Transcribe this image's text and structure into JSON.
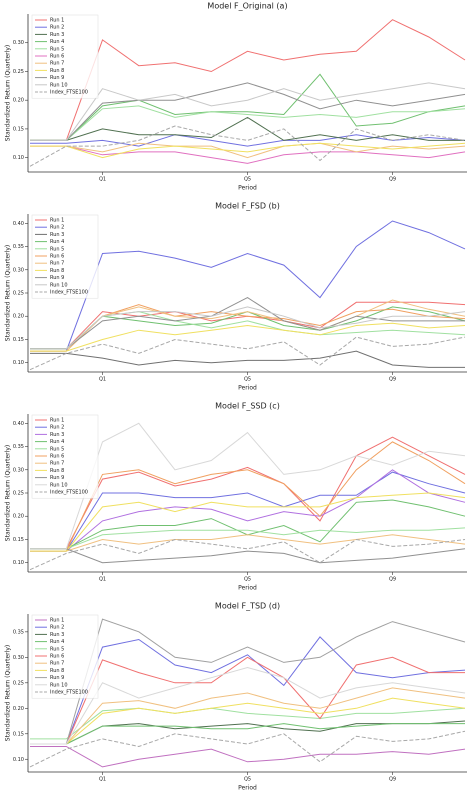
{
  "chart_data": [
    {
      "type": "line",
      "title": "Model F_Original (a)",
      "xlabel": "Period",
      "ylabel": "Standardized Return (Quarterly)",
      "legend": "upper left",
      "categories": [
        null,
        null,
        "Q1",
        null,
        null,
        null,
        "Q5",
        null,
        null,
        null,
        "Q9",
        null,
        null
      ],
      "ylim": [
        0.075,
        0.35
      ],
      "yticks": [
        {
          "value": 0.1,
          "label": "0.10"
        },
        {
          "value": 0.15,
          "label": "0.15"
        },
        {
          "value": 0.2,
          "label": "0.20"
        },
        {
          "value": 0.25,
          "label": "0.25"
        },
        {
          "value": 0.3,
          "label": "0.30"
        }
      ],
      "series": [
        {
          "name": "Run 1",
          "color": "#f07070",
          "values": [
            0.13,
            0.13,
            0.305,
            0.26,
            0.265,
            0.25,
            0.285,
            0.27,
            0.28,
            0.285,
            0.34,
            0.31,
            0.27
          ]
        },
        {
          "name": "Run 2",
          "color": "#7070e0",
          "values": [
            0.125,
            0.125,
            0.13,
            0.12,
            0.14,
            0.13,
            0.12,
            0.13,
            0.13,
            0.14,
            0.13,
            0.135,
            0.13
          ]
        },
        {
          "name": "Run 3",
          "color": "#507050",
          "values": [
            0.13,
            0.13,
            0.15,
            0.14,
            0.14,
            0.135,
            0.17,
            0.13,
            0.14,
            0.13,
            0.14,
            0.13,
            0.13
          ]
        },
        {
          "name": "Run 4",
          "color": "#70c070",
          "values": [
            0.13,
            0.13,
            0.19,
            0.2,
            0.175,
            0.18,
            0.18,
            0.175,
            0.245,
            0.155,
            0.16,
            0.18,
            0.19
          ]
        },
        {
          "name": "Run 5",
          "color": "#a0e0a0",
          "values": [
            0.13,
            0.13,
            0.185,
            0.19,
            0.17,
            0.18,
            0.175,
            0.17,
            0.175,
            0.17,
            0.18,
            0.18,
            0.185
          ]
        },
        {
          "name": "Run 6",
          "color": "#e070c0",
          "values": [
            0.12,
            0.12,
            0.105,
            0.11,
            0.11,
            0.1,
            0.09,
            0.105,
            0.11,
            0.11,
            0.105,
            0.1,
            0.11
          ]
        },
        {
          "name": "Run 7",
          "color": "#f0c080",
          "values": [
            0.12,
            0.12,
            0.11,
            0.125,
            0.12,
            0.12,
            0.1,
            0.12,
            0.125,
            0.11,
            0.12,
            0.115,
            0.12
          ]
        },
        {
          "name": "Run 8",
          "color": "#f0e060",
          "values": [
            0.12,
            0.12,
            0.1,
            0.115,
            0.12,
            0.115,
            0.11,
            0.12,
            0.125,
            0.12,
            0.115,
            0.12,
            0.125
          ]
        },
        {
          "name": "Run 9",
          "color": "#909090",
          "values": [
            0.13,
            0.13,
            0.195,
            0.2,
            0.2,
            0.215,
            0.23,
            0.21,
            0.185,
            0.2,
            0.19,
            0.2,
            0.21
          ]
        },
        {
          "name": "Run 10",
          "color": "#c8c8c8",
          "values": [
            0.13,
            0.13,
            0.22,
            0.2,
            0.21,
            0.19,
            0.2,
            0.22,
            0.2,
            0.21,
            0.22,
            0.23,
            0.22
          ]
        },
        {
          "name": "Index_FTSE100",
          "color": "#a8a8a8",
          "linestyle": "dashed",
          "values": [
            0.085,
            0.12,
            0.12,
            0.13,
            0.155,
            0.14,
            0.13,
            0.15,
            0.095,
            0.15,
            0.13,
            0.14,
            0.13
          ]
        }
      ]
    },
    {
      "type": "line",
      "title": "Model F_FSD (b)",
      "xlabel": "Period",
      "ylabel": "Standardized Return (Quarterly)",
      "legend": "upper left",
      "categories": [
        null,
        null,
        "Q1",
        null,
        null,
        null,
        "Q5",
        null,
        null,
        null,
        "Q9",
        null,
        null
      ],
      "ylim": [
        0.08,
        0.42
      ],
      "yticks": [
        {
          "value": 0.1,
          "label": "0.10"
        },
        {
          "value": 0.15,
          "label": "0.15"
        },
        {
          "value": 0.2,
          "label": "0.20"
        },
        {
          "value": 0.25,
          "label": "0.25"
        },
        {
          "value": 0.3,
          "label": "0.30"
        },
        {
          "value": 0.35,
          "label": "0.35"
        },
        {
          "value": 0.4,
          "label": "0.40"
        }
      ],
      "series": [
        {
          "name": "Run 1",
          "color": "#f07070",
          "values": [
            0.13,
            0.13,
            0.21,
            0.2,
            0.21,
            0.19,
            0.2,
            0.19,
            0.175,
            0.23,
            0.23,
            0.23,
            0.225
          ]
        },
        {
          "name": "Run 2",
          "color": "#7070e0",
          "values": [
            0.125,
            0.125,
            0.335,
            0.34,
            0.325,
            0.305,
            0.335,
            0.31,
            0.24,
            0.35,
            0.405,
            0.38,
            0.345
          ]
        },
        {
          "name": "Run 3",
          "color": "#707070",
          "values": [
            0.12,
            0.12,
            0.11,
            0.095,
            0.105,
            0.1,
            0.105,
            0.105,
            0.11,
            0.125,
            0.095,
            0.09,
            0.09
          ]
        },
        {
          "name": "Run 4",
          "color": "#70c070",
          "values": [
            0.13,
            0.13,
            0.2,
            0.19,
            0.18,
            0.185,
            0.21,
            0.18,
            0.17,
            0.19,
            0.22,
            0.21,
            0.19
          ]
        },
        {
          "name": "Run 5",
          "color": "#a0e0a0",
          "values": [
            0.13,
            0.13,
            0.2,
            0.21,
            0.19,
            0.175,
            0.19,
            0.17,
            0.16,
            0.165,
            0.17,
            0.165,
            0.16
          ]
        },
        {
          "name": "Run 6",
          "color": "#f0a060",
          "values": [
            0.125,
            0.125,
            0.2,
            0.225,
            0.2,
            0.21,
            0.2,
            0.195,
            0.18,
            0.21,
            0.215,
            0.2,
            0.195
          ]
        },
        {
          "name": "Run 7",
          "color": "#f0c080",
          "values": [
            0.125,
            0.125,
            0.2,
            0.22,
            0.2,
            0.195,
            0.21,
            0.19,
            0.17,
            0.2,
            0.235,
            0.215,
            0.2
          ]
        },
        {
          "name": "Run 8",
          "color": "#f0e060",
          "values": [
            0.125,
            0.125,
            0.15,
            0.17,
            0.16,
            0.17,
            0.18,
            0.17,
            0.16,
            0.18,
            0.185,
            0.175,
            0.18
          ]
        },
        {
          "name": "Run 9",
          "color": "#909090",
          "values": [
            0.13,
            0.13,
            0.19,
            0.2,
            0.19,
            0.2,
            0.24,
            0.19,
            0.17,
            0.2,
            0.19,
            0.19,
            0.19
          ]
        },
        {
          "name": "Run 10",
          "color": "#c8c8c8",
          "values": [
            0.13,
            0.13,
            0.2,
            0.21,
            0.21,
            0.2,
            0.22,
            0.2,
            0.175,
            0.185,
            0.2,
            0.2,
            0.21
          ]
        },
        {
          "name": "Index_FTSE100",
          "color": "#a8a8a8",
          "linestyle": "dashed",
          "values": [
            0.085,
            0.12,
            0.14,
            0.12,
            0.15,
            0.14,
            0.13,
            0.145,
            0.095,
            0.155,
            0.135,
            0.14,
            0.155
          ]
        }
      ]
    },
    {
      "type": "line",
      "title": "Model F_SSD (c)",
      "xlabel": "Period",
      "ylabel": "Standardized Return (Quarterly)",
      "legend": "upper left",
      "categories": [
        null,
        null,
        "Q1",
        null,
        null,
        null,
        "Q5",
        null,
        null,
        null,
        "Q9",
        null,
        null
      ],
      "ylim": [
        0.08,
        0.42
      ],
      "yticks": [
        {
          "value": 0.1,
          "label": "0.10"
        },
        {
          "value": 0.15,
          "label": "0.15"
        },
        {
          "value": 0.2,
          "label": "0.20"
        },
        {
          "value": 0.25,
          "label": "0.25"
        },
        {
          "value": 0.3,
          "label": "0.30"
        },
        {
          "value": 0.35,
          "label": "0.35"
        },
        {
          "value": 0.4,
          "label": "0.40"
        }
      ],
      "series": [
        {
          "name": "Run 1",
          "color": "#f07070",
          "values": [
            0.13,
            0.13,
            0.28,
            0.295,
            0.265,
            0.28,
            0.305,
            0.27,
            0.19,
            0.33,
            0.37,
            0.33,
            0.29
          ]
        },
        {
          "name": "Run 2",
          "color": "#7070e0",
          "values": [
            0.125,
            0.125,
            0.25,
            0.25,
            0.24,
            0.24,
            0.25,
            0.22,
            0.245,
            0.245,
            0.295,
            0.27,
            0.25
          ]
        },
        {
          "name": "Run 3",
          "color": "#b070e0",
          "values": [
            0.125,
            0.125,
            0.19,
            0.21,
            0.22,
            0.215,
            0.19,
            0.21,
            0.2,
            0.24,
            0.3,
            0.25,
            0.23
          ]
        },
        {
          "name": "Run 4",
          "color": "#70c070",
          "values": [
            0.13,
            0.13,
            0.17,
            0.18,
            0.18,
            0.195,
            0.16,
            0.18,
            0.145,
            0.23,
            0.235,
            0.22,
            0.2
          ]
        },
        {
          "name": "Run 5",
          "color": "#a0e0a0",
          "values": [
            0.13,
            0.13,
            0.16,
            0.165,
            0.17,
            0.17,
            0.17,
            0.16,
            0.17,
            0.165,
            0.17,
            0.17,
            0.175
          ]
        },
        {
          "name": "Run 6",
          "color": "#f0a060",
          "values": [
            0.125,
            0.125,
            0.29,
            0.3,
            0.27,
            0.29,
            0.3,
            0.27,
            0.2,
            0.3,
            0.36,
            0.32,
            0.27
          ]
        },
        {
          "name": "Run 7",
          "color": "#f0c080",
          "values": [
            0.125,
            0.125,
            0.15,
            0.14,
            0.15,
            0.15,
            0.16,
            0.15,
            0.14,
            0.15,
            0.16,
            0.15,
            0.14
          ]
        },
        {
          "name": "Run 8",
          "color": "#f0e060",
          "values": [
            0.125,
            0.125,
            0.22,
            0.23,
            0.21,
            0.23,
            0.22,
            0.22,
            0.22,
            0.24,
            0.245,
            0.25,
            0.24
          ]
        },
        {
          "name": "Run 9",
          "color": "#909090",
          "values": [
            0.13,
            0.13,
            0.1,
            0.105,
            0.11,
            0.115,
            0.125,
            0.12,
            0.1,
            0.105,
            0.11,
            0.12,
            0.13
          ]
        },
        {
          "name": "Run 10",
          "color": "#d8d8d8",
          "values": [
            0.13,
            0.13,
            0.36,
            0.4,
            0.3,
            0.32,
            0.38,
            0.29,
            0.3,
            0.33,
            0.31,
            0.34,
            0.33
          ]
        },
        {
          "name": "Index_FTSE100",
          "color": "#a8a8a8",
          "linestyle": "dashed",
          "values": [
            0.085,
            0.12,
            0.14,
            0.12,
            0.15,
            0.14,
            0.13,
            0.145,
            0.1,
            0.15,
            0.135,
            0.14,
            0.15
          ]
        }
      ]
    },
    {
      "type": "line",
      "title": "Model F_TSD (d)",
      "xlabel": "Period",
      "ylabel": "Standardized Return (Quarterly)",
      "legend": "upper left",
      "categories": [
        null,
        null,
        "Q1",
        null,
        null,
        null,
        "Q5",
        null,
        null,
        null,
        "Q9",
        null,
        null
      ],
      "ylim": [
        0.075,
        0.385
      ],
      "yticks": [
        {
          "value": 0.1,
          "label": "0.10"
        },
        {
          "value": 0.15,
          "label": "0.15"
        },
        {
          "value": 0.2,
          "label": "0.20"
        },
        {
          "value": 0.25,
          "label": "0.25"
        },
        {
          "value": 0.3,
          "label": "0.30"
        },
        {
          "value": 0.35,
          "label": "0.35"
        }
      ],
      "series": [
        {
          "name": "Run 1",
          "color": "#c070c0",
          "values": [
            0.125,
            0.125,
            0.085,
            0.1,
            0.11,
            0.12,
            0.095,
            0.1,
            0.11,
            0.11,
            0.115,
            0.11,
            0.12
          ]
        },
        {
          "name": "Run 2",
          "color": "#7070e0",
          "values": [
            0.13,
            0.13,
            0.32,
            0.335,
            0.285,
            0.27,
            0.305,
            0.245,
            0.34,
            0.27,
            0.26,
            0.27,
            0.275
          ]
        },
        {
          "name": "Run 3",
          "color": "#507050",
          "values": [
            0.13,
            0.13,
            0.165,
            0.17,
            0.16,
            0.165,
            0.17,
            0.16,
            0.155,
            0.17,
            0.17,
            0.17,
            0.175
          ]
        },
        {
          "name": "Run 4",
          "color": "#70c070",
          "values": [
            0.13,
            0.13,
            0.165,
            0.165,
            0.165,
            0.16,
            0.16,
            0.17,
            0.16,
            0.165,
            0.17,
            0.17,
            0.17
          ]
        },
        {
          "name": "Run 5",
          "color": "#a0e0a0",
          "values": [
            0.14,
            0.14,
            0.195,
            0.2,
            0.19,
            0.2,
            0.19,
            0.185,
            0.18,
            0.19,
            0.19,
            0.195,
            0.2
          ]
        },
        {
          "name": "Run 6",
          "color": "#f07070",
          "values": [
            0.13,
            0.13,
            0.295,
            0.27,
            0.25,
            0.25,
            0.3,
            0.26,
            0.18,
            0.285,
            0.3,
            0.27,
            0.27
          ]
        },
        {
          "name": "Run 7",
          "color": "#f0c080",
          "values": [
            0.13,
            0.13,
            0.21,
            0.215,
            0.2,
            0.22,
            0.23,
            0.21,
            0.2,
            0.22,
            0.24,
            0.23,
            0.22
          ]
        },
        {
          "name": "Run 8",
          "color": "#f0e060",
          "values": [
            0.13,
            0.13,
            0.19,
            0.2,
            0.19,
            0.2,
            0.21,
            0.2,
            0.19,
            0.2,
            0.22,
            0.21,
            0.2
          ]
        },
        {
          "name": "Run 9",
          "color": "#a0a0a0",
          "values": [
            0.13,
            0.13,
            0.375,
            0.35,
            0.3,
            0.29,
            0.32,
            0.29,
            0.3,
            0.34,
            0.37,
            0.35,
            0.33
          ]
        },
        {
          "name": "Run 10",
          "color": "#d8d8d8",
          "values": [
            0.13,
            0.13,
            0.25,
            0.22,
            0.24,
            0.26,
            0.28,
            0.26,
            0.22,
            0.24,
            0.25,
            0.24,
            0.23
          ]
        },
        {
          "name": "Index_FTSE100",
          "color": "#a8a8a8",
          "linestyle": "dashed",
          "values": [
            0.085,
            0.12,
            0.14,
            0.125,
            0.15,
            0.14,
            0.13,
            0.15,
            0.095,
            0.145,
            0.135,
            0.14,
            0.155
          ]
        }
      ]
    }
  ]
}
